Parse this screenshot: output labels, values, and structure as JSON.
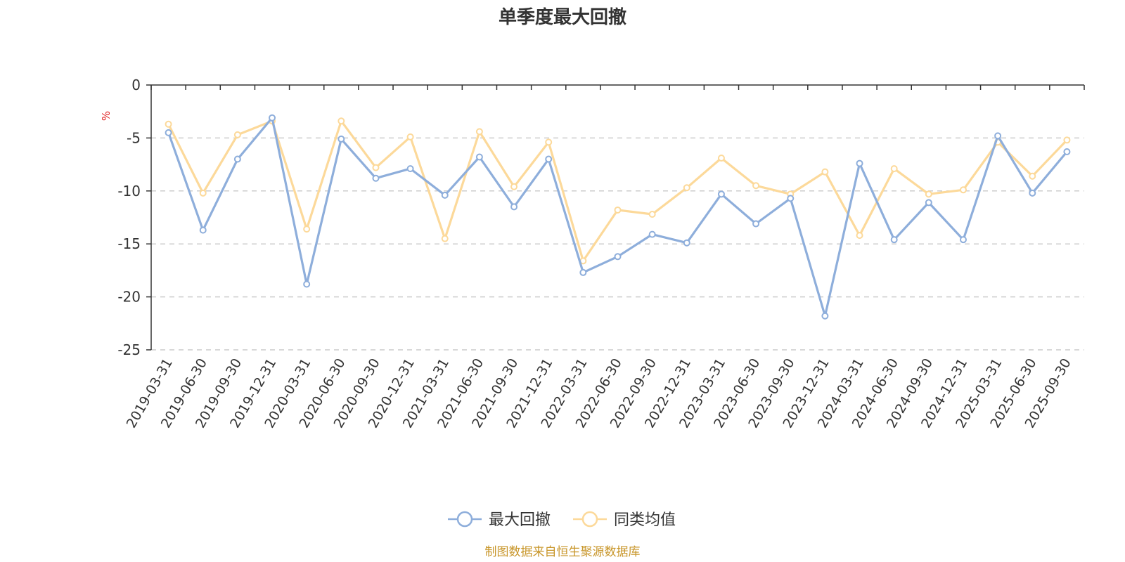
{
  "chart_data": {
    "type": "line",
    "title": "单季度最大回撤",
    "ylabel": "%",
    "xlabel": "",
    "ylim": [
      -25,
      0
    ],
    "yticks": [
      0,
      -5,
      -10,
      -15,
      -20,
      -25
    ],
    "grid": true,
    "legend_position": "bottom-center",
    "categories": [
      "2019-03-31",
      "2019-06-30",
      "2019-09-30",
      "2019-12-31",
      "2020-03-31",
      "2020-06-30",
      "2020-09-30",
      "2020-12-31",
      "2021-03-31",
      "2021-06-30",
      "2021-09-30",
      "2021-12-31",
      "2022-03-31",
      "2022-06-30",
      "2022-09-30",
      "2022-12-31",
      "2023-03-31",
      "2023-06-30",
      "2023-09-30",
      "2023-12-31",
      "2024-03-31",
      "2024-06-30",
      "2024-09-30",
      "2024-12-31",
      "2025-03-31",
      "2025-06-30",
      "2025-09-30"
    ],
    "series": [
      {
        "name": "最大回撤",
        "color": "#8eaedb",
        "values": [
          -4.5,
          -13.7,
          -7.0,
          -3.1,
          -18.8,
          -5.1,
          -8.8,
          -7.9,
          -10.4,
          -6.8,
          -11.5,
          -7.0,
          -17.7,
          -16.2,
          -14.1,
          -14.9,
          -10.3,
          -13.1,
          -10.7,
          -21.8,
          -7.4,
          -14.6,
          -11.1,
          -14.6,
          -4.8,
          -10.2,
          -6.3
        ]
      },
      {
        "name": "同类均值",
        "color": "#fcd99a",
        "values": [
          -3.7,
          -10.2,
          -4.7,
          -3.4,
          -13.6,
          -3.4,
          -7.8,
          -4.9,
          -14.5,
          -4.4,
          -9.6,
          -5.4,
          -16.6,
          -11.8,
          -12.2,
          -9.7,
          -6.9,
          -9.5,
          -10.3,
          -8.2,
          -14.2,
          -7.9,
          -10.3,
          -9.9,
          -5.4,
          -8.6,
          -5.2
        ]
      }
    ],
    "source": "制图数据来自恒生聚源数据库"
  }
}
